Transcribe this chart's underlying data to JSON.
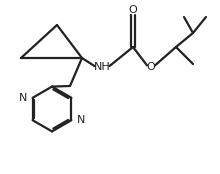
{
  "bg_color": "#ffffff",
  "line_color": "#222222",
  "lw": 1.6,
  "fs": 8.0,
  "xlim": [
    0,
    11
  ],
  "ylim": [
    0,
    8.5
  ],
  "figsize": [
    2.2,
    1.74
  ],
  "dpi": 100
}
